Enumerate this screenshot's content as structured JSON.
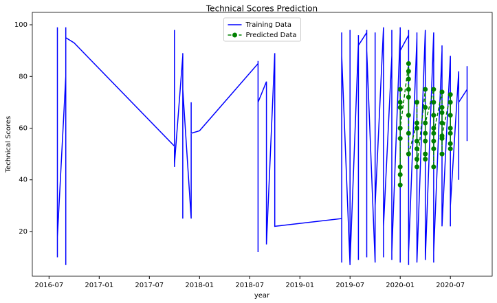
{
  "chart_data": {
    "type": "line",
    "title": "Technical Scores Prediction",
    "x_label": "year",
    "y_label": "Technical Scores",
    "xlim": [
      "2016-05",
      "2020-12"
    ],
    "xticks": [
      "2016-07",
      "2017-01",
      "2017-07",
      "2018-01",
      "2018-07",
      "2019-01",
      "2019-07",
      "2020-01",
      "2020-07"
    ],
    "ylim": [
      2.7,
      104.8
    ],
    "yticks": [
      20,
      40,
      60,
      80,
      100
    ],
    "legend": "upper center",
    "series": [
      {
        "name": "Training Data",
        "color": "#0000ff",
        "dashed": false,
        "markers": false,
        "x": [
          "2016-08",
          "2016-08",
          "2016-08",
          "2016-08",
          "2016-08",
          "2016-08",
          "2016-08",
          "2016-08",
          "2016-08",
          "2016-08",
          "2016-08",
          "2016-08",
          "2016-09",
          "2016-09",
          "2016-09",
          "2016-09",
          "2016-09",
          "2016-09",
          "2016-09",
          "2016-09",
          "2016-09",
          "2016-10",
          "2017-10",
          "2017-10",
          "2017-10",
          "2017-10",
          "2017-10",
          "2017-10",
          "2017-10",
          "2017-11",
          "2017-11",
          "2017-11",
          "2017-11",
          "2017-11",
          "2017-11",
          "2017-11",
          "2017-12",
          "2017-12",
          "2017-12",
          "2018-01",
          "2018-08",
          "2018-08",
          "2018-08",
          "2018-08",
          "2018-08",
          "2018-08",
          "2018-08",
          "2018-08",
          "2018-09",
          "2018-09",
          "2018-09",
          "2018-09",
          "2018-09",
          "2018-09",
          "2018-09",
          "2018-09",
          "2018-10",
          "2018-10",
          "2019-06",
          "2019-06",
          "2019-06",
          "2019-06",
          "2019-06",
          "2019-06",
          "2019-06",
          "2019-06",
          "2019-06",
          "2019-06",
          "2019-07",
          "2019-07",
          "2019-07",
          "2019-07",
          "2019-07",
          "2019-07",
          "2019-07",
          "2019-08",
          "2019-08",
          "2019-08",
          "2019-08",
          "2019-08",
          "2019-08",
          "2019-08",
          "2019-09",
          "2019-09",
          "2019-09",
          "2019-09",
          "2019-09",
          "2019-09",
          "2019-09",
          "2019-10",
          "2019-10",
          "2019-10",
          "2019-10",
          "2019-10",
          "2019-10",
          "2019-10",
          "2019-11",
          "2019-11",
          "2019-11",
          "2019-11",
          "2019-11",
          "2019-11",
          "2019-12",
          "2019-12",
          "2019-12",
          "2019-12",
          "2019-12",
          "2019-12",
          "2020-01",
          "2020-01",
          "2020-01",
          "2020-01",
          "2020-01",
          "2020-01",
          "2020-01",
          "2020-02",
          "2020-02",
          "2020-02",
          "2020-02",
          "2020-02",
          "2020-02",
          "2020-03",
          "2020-03",
          "2020-03",
          "2020-03",
          "2020-03",
          "2020-03",
          "2020-04",
          "2020-04",
          "2020-04",
          "2020-04",
          "2020-04",
          "2020-04",
          "2020-05",
          "2020-05",
          "2020-05",
          "2020-05",
          "2020-05",
          "2020-05",
          "2020-06",
          "2020-06",
          "2020-06",
          "2020-06",
          "2020-06",
          "2020-06",
          "2020-07",
          "2020-07",
          "2020-07",
          "2020-07",
          "2020-07",
          "2020-07",
          "2020-08",
          "2020-08",
          "2020-08",
          "2020-08",
          "2020-08",
          "2020-09",
          "2020-09",
          "2020-09",
          "2020-09"
        ],
        "values": [
          78,
          20,
          91,
          13,
          88,
          10,
          97,
          30,
          99,
          25,
          85,
          18,
          80,
          7,
          75,
          9,
          99,
          46,
          98,
          60,
          95,
          93,
          53,
          98,
          45,
          97,
          47,
          89,
          46,
          88,
          35,
          89,
          50,
          79,
          25,
          75,
          25,
          70,
          58,
          59,
          85,
          45,
          86,
          32,
          80,
          13,
          12,
          70,
          78,
          23,
          77,
          40,
          76,
          55,
          70,
          15,
          89,
          22,
          25,
          95,
          8,
          92,
          10,
          97,
          12,
          95,
          20,
          88,
          7,
          98,
          10,
          96,
          15,
          90,
          8,
          93,
          12,
          96,
          20,
          85,
          9,
          92,
          97,
          10,
          88,
          25,
          98,
          15,
          90,
          8,
          95,
          12,
          97,
          20,
          90,
          30,
          99,
          15,
          92,
          10,
          96,
          22,
          88,
          9,
          98,
          18,
          95,
          12,
          97,
          8,
          92,
          15,
          99,
          10,
          90,
          96,
          7,
          88,
          20,
          98,
          12,
          95,
          10,
          97,
          15,
          90,
          8,
          98,
          12,
          92,
          20,
          96,
          9,
          97,
          8,
          93,
          22,
          95,
          12,
          90,
          22,
          88,
          22,
          92,
          22,
          88,
          22,
          85,
          22,
          80,
          30,
          82,
          40,
          75,
          45,
          70,
          75,
          55,
          84,
          60
        ]
      },
      {
        "name": "Predicted Data",
        "color": "#008000",
        "dashed": true,
        "markers": true,
        "x": [
          "2020-01",
          "2020-01",
          "2020-01",
          "2020-01",
          "2020-01",
          "2020-01",
          "2020-01",
          "2020-01",
          "2020-02",
          "2020-02",
          "2020-02",
          "2020-02",
          "2020-02",
          "2020-02",
          "2020-02",
          "2020-02",
          "2020-03",
          "2020-03",
          "2020-03",
          "2020-03",
          "2020-03",
          "2020-03",
          "2020-03",
          "2020-04",
          "2020-04",
          "2020-04",
          "2020-04",
          "2020-04",
          "2020-04",
          "2020-04",
          "2020-05",
          "2020-05",
          "2020-05",
          "2020-05",
          "2020-05",
          "2020-05",
          "2020-05",
          "2020-05",
          "2020-06",
          "2020-06",
          "2020-06",
          "2020-06",
          "2020-06",
          "2020-06",
          "2020-06",
          "2020-07",
          "2020-07",
          "2020-07",
          "2020-07",
          "2020-07",
          "2020-07",
          "2020-07"
        ],
        "values": [
          68,
          75,
          56,
          45,
          38,
          42,
          70,
          60,
          85,
          82,
          79,
          72,
          65,
          75,
          58,
          50,
          62,
          55,
          48,
          70,
          52,
          60,
          45,
          75,
          58,
          50,
          68,
          55,
          48,
          62,
          75,
          65,
          55,
          45,
          60,
          52,
          70,
          58,
          74,
          66,
          56,
          62,
          50,
          68,
          57,
          73,
          60,
          54,
          65,
          58,
          70,
          52
        ]
      }
    ]
  }
}
